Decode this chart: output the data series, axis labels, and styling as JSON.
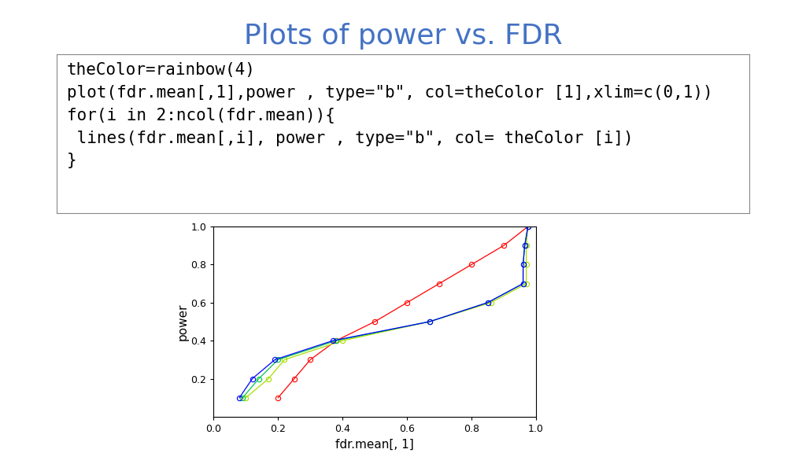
{
  "title": "Plots of power vs. FDR",
  "title_color": "#4472C4",
  "title_fontsize": 26,
  "code_lines": [
    "theColor=rainbow(4)",
    "plot(fdr.mean[,1],power , type=\"b\", col=theColor [1],xlim=c(0,1))",
    "for(i in 2:ncol(fdr.mean)){",
    " lines(fdr.mean[,i], power , type=\"b\", col= theColor [i])",
    "}"
  ],
  "xlabel": "fdr.mean[, 1]",
  "ylabel": "power",
  "xlim": [
    0.0,
    1.0
  ],
  "ylim": [
    0.0,
    1.0
  ],
  "xticks": [
    0.0,
    0.2,
    0.4,
    0.6,
    0.8,
    1.0
  ],
  "yticks": [
    0.2,
    0.4,
    0.6,
    0.8,
    1.0
  ],
  "power": [
    0.1,
    0.2,
    0.3,
    0.4,
    0.5,
    0.6,
    0.7,
    0.8,
    0.9,
    1.0
  ],
  "fdr_blue": [
    0.08,
    0.12,
    0.19,
    0.37,
    0.67,
    0.85,
    0.96,
    0.96,
    0.965,
    0.975
  ],
  "fdr_green": [
    0.09,
    0.14,
    0.2,
    0.38,
    0.67,
    0.85,
    0.96,
    0.96,
    0.965,
    0.975
  ],
  "fdr_yellowgreen": [
    0.1,
    0.17,
    0.22,
    0.4,
    0.67,
    0.86,
    0.97,
    0.97,
    0.97,
    0.975
  ],
  "fdr_red": [
    0.2,
    0.25,
    0.3,
    0.38,
    0.5,
    0.6,
    0.7,
    0.8,
    0.9,
    0.975
  ],
  "line_colors": [
    "#FF0000",
    "#AADD00",
    "#00CC44",
    "#0000FF"
  ],
  "bg_color": "#FFFFFF",
  "box_bg": "#FFFFFF",
  "code_fontsize": 15,
  "axis_fontsize": 9,
  "label_fontsize": 11
}
